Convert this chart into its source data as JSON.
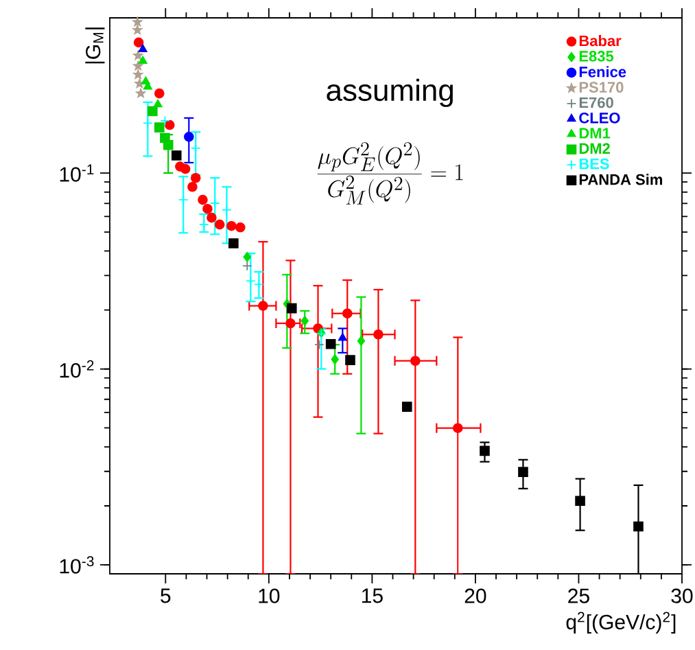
{
  "chart_data": {
    "type": "scatter",
    "xlabel": "q$^{2}$[(GeV/c)$^{2}$]",
    "ylabel": "|G$_{M}$|",
    "annotations": [
      "assuming",
      "\\frac{\\mu_{p}G_{E}^{2}(Q^{2})}{G_{M}^{2}(Q^{2})}=1"
    ],
    "log": "y",
    "legend": "top right",
    "xlim": [
      2.3,
      30
    ],
    "ylim": [
      0.0009,
      0.62
    ],
    "xticks": [
      5,
      10,
      15,
      20,
      25,
      30
    ],
    "yticks": [
      {
        "value": 0.001,
        "label": "10$^{-3}$"
      },
      {
        "value": 0.01,
        "label": "10$^{-2}$"
      },
      {
        "value": 0.1,
        "label": "10$^{-1}$"
      }
    ],
    "series": [
      {
        "name": "Babar",
        "color": "#ff0000",
        "marker": "circle",
        "x": [
          3.7,
          4.7,
          5.2,
          5.7,
          5.96,
          6.3,
          6.46,
          6.8,
          7.03,
          7.23,
          7.62,
          8.19,
          8.62,
          9.72,
          11.05,
          12.38,
          13.8,
          15.3,
          17.09,
          19.15
        ],
        "values": [
          0.464,
          0.255,
          0.176,
          0.108,
          0.105,
          0.085,
          0.0944,
          0.073,
          0.0657,
          0.0592,
          0.0546,
          0.0537,
          0.0528,
          0.021,
          0.0171,
          0.0161,
          0.0192,
          0.015,
          0.011,
          0.00499
        ],
        "errors": [
          null,
          null,
          null,
          null,
          null,
          null,
          null,
          null,
          null,
          null,
          null,
          null,
          null,
          [
            0.0009,
            0.0446
          ],
          [
            0.0009,
            0.0358
          ],
          [
            0.00568,
            0.0266
          ],
          [
            0.00944,
            0.0284
          ],
          [
            0.00468,
            0.0254
          ],
          [
            0.0009,
            0.0224
          ],
          [
            0.0009,
            0.0145
          ]
        ],
        "xerrors": [
          null,
          null,
          null,
          null,
          null,
          null,
          null,
          null,
          null,
          null,
          null,
          null,
          null,
          [
            9.05,
            10.35
          ],
          [
            10.35,
            11.51
          ],
          [
            11.6,
            13.04
          ],
          [
            13.07,
            14.44
          ],
          [
            14.53,
            16.1
          ],
          [
            16.1,
            18.12
          ],
          [
            18.12,
            20.25
          ]
        ]
      },
      {
        "name": "E835",
        "color": "#00e000",
        "marker": "diamond",
        "x": [
          8.95,
          10.88,
          11.74,
          12.54,
          13.2,
          14.47
        ],
        "values": [
          0.0373,
          0.0215,
          0.0176,
          0.0153,
          0.0112,
          0.0139
        ],
        "errors": [
          null,
          [
            0.0128,
            0.0303
          ],
          [
            0.0152,
            0.0198
          ],
          null,
          [
            0.00944,
            0.0133
          ],
          [
            0.00468,
            0.0233
          ]
        ]
      },
      {
        "name": "Fenice",
        "color": "#0000ff",
        "marker": "circle",
        "x": [
          6.13
        ],
        "values": [
          0.153
        ],
        "errors": [
          [
            0.113,
            0.191
          ]
        ]
      },
      {
        "name": "PS170",
        "color": "#b0a090",
        "marker": "star",
        "x": [
          3.64,
          3.64,
          3.67,
          3.67,
          3.67,
          3.74,
          3.8
        ],
        "values": [
          0.59,
          0.537,
          0.398,
          0.352,
          0.318,
          0.286,
          0.255
        ]
      },
      {
        "name": "E760",
        "color": "#708080",
        "marker": "cross",
        "x": [
          8.95,
          12.44
        ],
        "values": [
          0.0336,
          0.0133
        ]
      },
      {
        "name": "CLEO",
        "color": "#0000ee",
        "marker": "triangle",
        "x": [
          3.9,
          13.57
        ],
        "values": [
          0.428,
          0.0144
        ],
        "errors": [
          null,
          [
            0.0121,
            0.0161
          ]
        ]
      },
      {
        "name": "DM1",
        "color": "#00dd00",
        "marker": "triangle",
        "x": [
          3.9,
          4.04,
          4.14,
          4.63
        ],
        "values": [
          0.373,
          0.293,
          0.276,
          0.224
        ]
      },
      {
        "name": "DM2",
        "color": "#00cc00",
        "marker": "square",
        "x": [
          4.37,
          4.7,
          4.97,
          5.13
        ],
        "values": [
          0.207,
          0.171,
          0.151,
          0.139
        ],
        "errors": [
          null,
          null,
          null,
          [
            0.1,
            0.157
          ]
        ]
      },
      {
        "name": "BES",
        "color": "#00ffff",
        "marker": "cross",
        "x": [
          4.14,
          4.97,
          6.46,
          5.86,
          7.39,
          7.96,
          6.86,
          9.12,
          9.52,
          12.54
        ],
        "values": [
          0.18,
          0.185,
          0.134,
          0.073,
          0.0702,
          0.0648,
          0.0546,
          0.0281,
          0.027,
          0.0151
        ],
        "errors": [
          [
            0.122,
            0.23
          ],
          null,
          [
            0.0976,
            0.162
          ],
          [
            0.0495,
            0.096
          ],
          [
            0.0487,
            0.0945
          ],
          [
            0.0438,
            0.085
          ],
          [
            0.05,
            0.0617
          ],
          [
            0.0221,
            0.0389
          ],
          [
            0.023,
            0.0313
          ],
          [
            0.01,
            0.016
          ]
        ]
      },
      {
        "name": "PANDA Sim",
        "color": "#000000",
        "marker": "square",
        "x": [
          5.53,
          8.29,
          11.11,
          13.0,
          13.94,
          16.69,
          20.45,
          22.31,
          25.07,
          27.89
        ],
        "values": [
          0.123,
          0.0438,
          0.0204,
          0.0134,
          0.0111,
          0.00641,
          0.00382,
          0.00298,
          0.00212,
          0.00157
        ],
        "errors": [
          null,
          null,
          null,
          null,
          null,
          null,
          [
            0.00336,
            0.00422
          ],
          [
            0.00245,
            0.00344
          ],
          [
            0.0015,
            0.00275
          ],
          [
            0.0009,
            0.00255
          ]
        ]
      }
    ]
  }
}
